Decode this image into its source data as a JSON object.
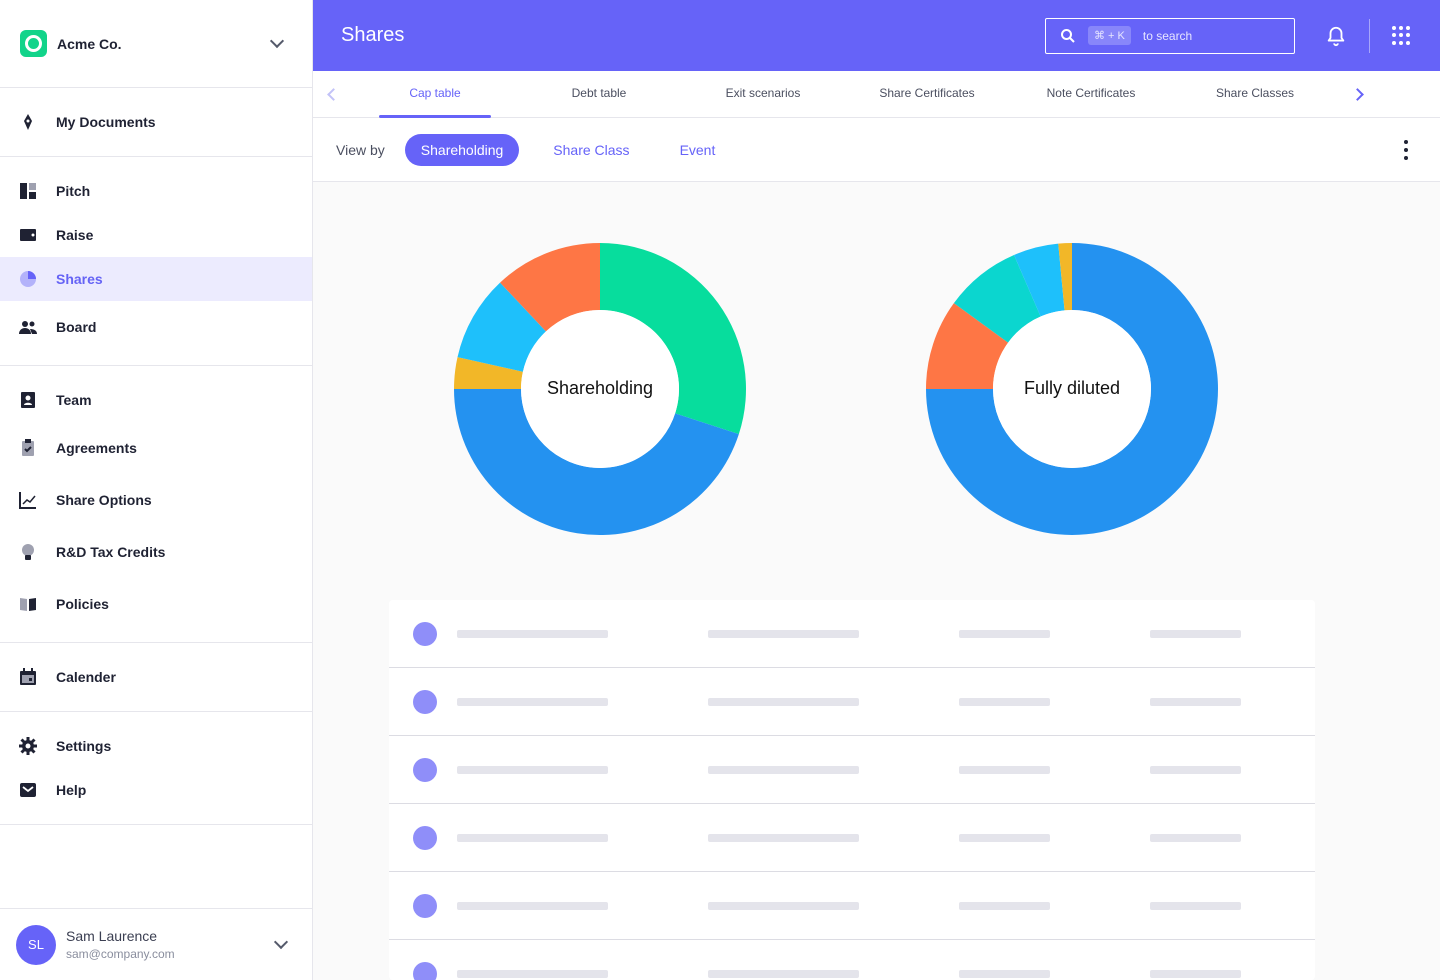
{
  "org": {
    "name": "Acme Co."
  },
  "sidebar": {
    "groups": [
      [
        {
          "label": "My Documents",
          "icon": "pen-nib-icon"
        }
      ],
      [
        {
          "label": "Pitch",
          "icon": "dashboard-icon"
        },
        {
          "label": "Raise",
          "icon": "wallet-icon"
        },
        {
          "label": "Shares",
          "icon": "pie-chart-icon",
          "active": true
        },
        {
          "label": "Board",
          "icon": "people-icon"
        }
      ],
      [
        {
          "label": "Team",
          "icon": "contact-card-icon"
        },
        {
          "label": "Agreements",
          "icon": "clipboard-check-icon"
        },
        {
          "label": "Share Options",
          "icon": "line-chart-icon"
        },
        {
          "label": "R&D Tax Credits",
          "icon": "lightbulb-icon"
        },
        {
          "label": "Policies",
          "icon": "book-icon"
        }
      ],
      [
        {
          "label": "Calender",
          "icon": "calendar-icon"
        }
      ],
      [
        {
          "label": "Settings",
          "icon": "gear-icon"
        },
        {
          "label": "Help",
          "icon": "mail-icon"
        }
      ]
    ]
  },
  "user": {
    "initials": "SL",
    "name": "Sam Laurence",
    "email": "sam@company.com"
  },
  "header": {
    "title": "Shares",
    "search_shortcut": "⌘ + K",
    "search_hint": "to search"
  },
  "tabs": [
    "Cap table",
    "Debt table",
    "Exit scenarios",
    "Share Certificates",
    "Note Certificates",
    "Share Classes"
  ],
  "active_tab": "Cap table",
  "view_by": {
    "label": "View by",
    "options": [
      "Shareholding",
      "Share Class",
      "Event"
    ],
    "selected": "Shareholding"
  },
  "chart_data": [
    {
      "type": "pie",
      "title": "Shareholding",
      "slices": [
        {
          "value": 30,
          "color": "#07dd9d"
        },
        {
          "value": 45,
          "color": "#2492f0"
        },
        {
          "value": 3.5,
          "color": "#f2b728"
        },
        {
          "value": 9.5,
          "color": "#1ec0fb"
        },
        {
          "value": 12,
          "color": "#fe7645"
        }
      ]
    },
    {
      "type": "pie",
      "title": "Fully diluted",
      "slices": [
        {
          "value": 75,
          "color": "#2492f0"
        },
        {
          "value": 10,
          "color": "#fe7645"
        },
        {
          "value": 8.5,
          "color": "#0bd6cf"
        },
        {
          "value": 5,
          "color": "#1ec0fb"
        },
        {
          "value": 1.5,
          "color": "#f2b728"
        }
      ]
    }
  ],
  "table": {
    "placeholder_rows": 6
  }
}
